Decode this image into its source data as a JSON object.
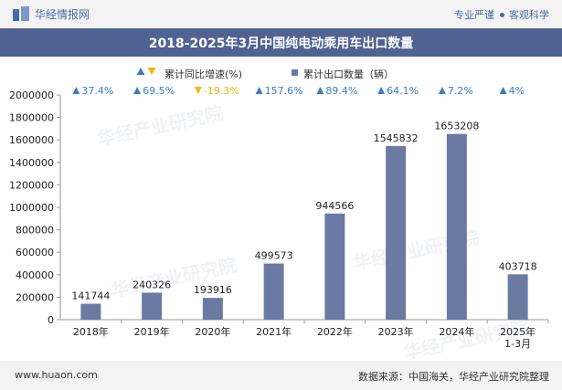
{
  "header": {
    "brand": "华经情报网",
    "tags": [
      "专业严谨",
      "客观科学"
    ]
  },
  "title": "2018-2025年3月中国纯电动乘用车出口数量",
  "legend": {
    "growth_label": "累计同比增速(%)",
    "export_label": "累计出口数量（辆）"
  },
  "watermark": "华经产业研究院",
  "footer": {
    "site": "www.huaon.com",
    "source": "数据来源：中国海关，华经产业研究院整理"
  },
  "colors": {
    "bar": "#6a7aa3",
    "up": "#3a7ec2",
    "down": "#f3b700"
  },
  "chart_data": {
    "type": "bar",
    "categories": [
      "2018年",
      "2019年",
      "2020年",
      "2021年",
      "2022年",
      "2023年",
      "2024年",
      "2025年\n1-3月"
    ],
    "series": [
      {
        "name": "累计出口数量（辆）",
        "values": [
          141744,
          240326,
          193916,
          499573,
          944566,
          1545832,
          1653208,
          403718
        ]
      },
      {
        "name": "累计同比增速(%)",
        "values": [
          37.4,
          69.5,
          -19.3,
          157.6,
          89.4,
          64.1,
          7.2,
          4
        ],
        "labels": [
          "37.4%",
          "69.5%",
          "-19.3%",
          "157.6%",
          "89.4%",
          "64.1%",
          "7.2%",
          "4%"
        ]
      }
    ],
    "y_ticks": [
      0,
      200000,
      400000,
      600000,
      800000,
      1000000,
      1200000,
      1400000,
      1600000,
      1800000,
      2000000
    ],
    "ylim": [
      0,
      2000000
    ],
    "grid": false,
    "legend_position": "top-center"
  }
}
